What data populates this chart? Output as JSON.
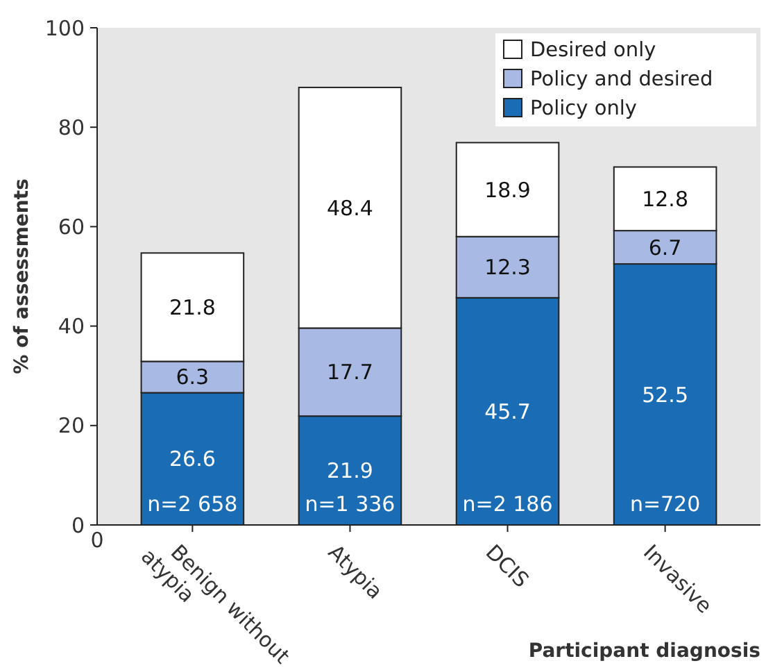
{
  "chart_data": {
    "type": "bar",
    "stacked": true,
    "xlabel": "Participant diagnosis",
    "ylabel": "% of assessments",
    "categories": [
      "Benign without atypia",
      "Atypia",
      "DCIS",
      "Invasive"
    ],
    "series": [
      {
        "name": "Policy only",
        "color": "#1a6db5",
        "values": [
          26.6,
          21.9,
          45.7,
          52.5
        ]
      },
      {
        "name": "Policy and desired",
        "color": "#a8b9e3",
        "values": [
          6.3,
          17.7,
          12.3,
          6.7
        ]
      },
      {
        "name": "Desired only",
        "color": "#ffffff",
        "values": [
          21.8,
          48.4,
          18.9,
          12.8
        ]
      }
    ],
    "ylim": [
      0,
      100
    ],
    "yticks": [
      0,
      20,
      40,
      60,
      80,
      100
    ],
    "grid": false,
    "legend": "top right",
    "data_labels": true,
    "annotations": [
      "n=2 658",
      "n=1 336",
      "n=2 186",
      "n=720",
      "0"
    ]
  }
}
